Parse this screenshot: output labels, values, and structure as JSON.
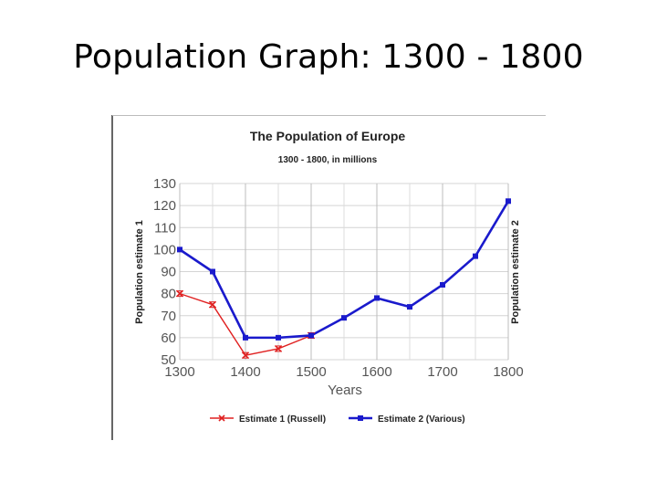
{
  "slide": {
    "title": "Population Graph: 1300 - 1800"
  },
  "chart_data": {
    "type": "line",
    "title": "The Population of Europe",
    "subtitle": "1300 - 1800, in millions",
    "xlabel": "Years",
    "ylabel": "Population estimate 1",
    "ylabel_right": "Population estimate 2",
    "xlim": [
      1300,
      1800
    ],
    "ylim": [
      50,
      130
    ],
    "xticks": [
      "1300",
      "1400",
      "1500",
      "1600",
      "1700",
      "1800"
    ],
    "yticks": [
      "50",
      "60",
      "70",
      "80",
      "90",
      "100",
      "110",
      "120",
      "130"
    ],
    "grid": true,
    "legend_position": "bottom",
    "series": [
      {
        "name": "Estimate 1 (Russell)",
        "color": "#e02020",
        "marker": "x",
        "x": [
          1300,
          1350,
          1400,
          1450,
          1500
        ],
        "y": [
          80,
          75,
          52,
          55,
          61
        ]
      },
      {
        "name": "Estimate 2 (Various)",
        "color": "#1a1acc",
        "marker": "square",
        "x": [
          1300,
          1350,
          1400,
          1450,
          1500,
          1550,
          1600,
          1650,
          1700,
          1750,
          1800
        ],
        "y": [
          100,
          90,
          60,
          60,
          61,
          69,
          78,
          74,
          84,
          97,
          122
        ]
      }
    ]
  }
}
